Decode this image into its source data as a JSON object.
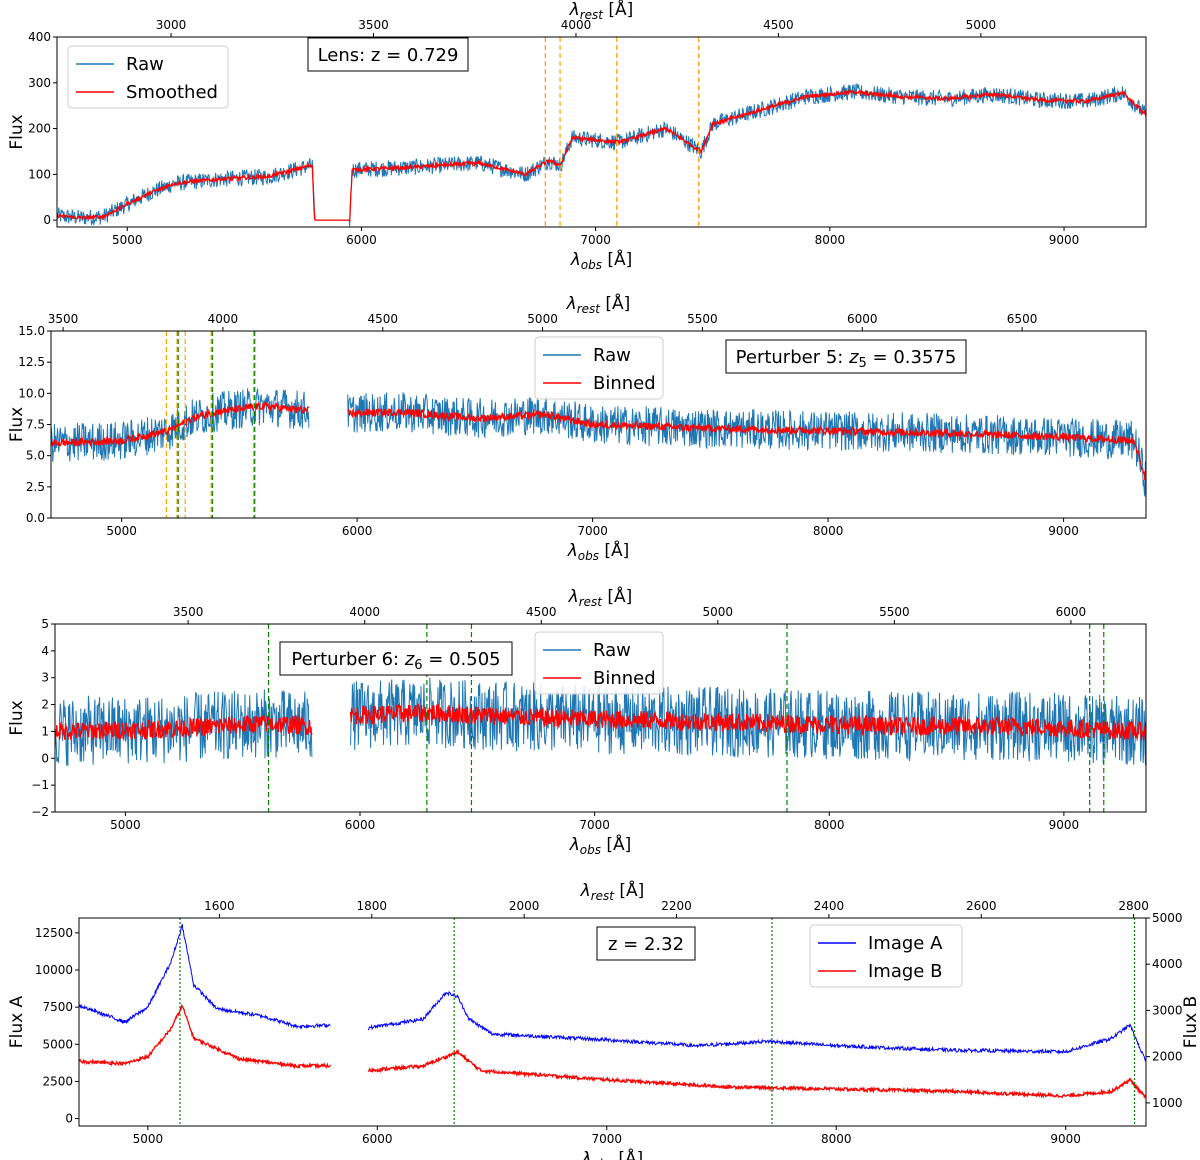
{
  "chart_data": [
    {
      "type": "line",
      "panel": "lens",
      "xlabel_main": "λ",
      "xlabel_sub": "obs",
      "xlabel_unit": " [Å]",
      "top_xlabel_main": "λ",
      "top_xlabel_sub": "rest",
      "top_xlabel_unit": " [Å]",
      "ylabel": "Flux",
      "xlim": [
        4700,
        9350
      ],
      "ylim": [
        -15,
        400
      ],
      "x_ticks": [
        "5000",
        "6000",
        "7000",
        "8000",
        "9000"
      ],
      "x_tick_values": [
        5000,
        6000,
        7000,
        8000,
        9000
      ],
      "top_ticks": [
        "3000",
        "3500",
        "4000",
        "4500",
        "5000"
      ],
      "top_tick_values": [
        3000,
        3500,
        4000,
        4500,
        5000
      ],
      "y_ticks": [
        "0",
        "100",
        "200",
        "300",
        "400"
      ],
      "y_tick_values": [
        0,
        100,
        200,
        300,
        400
      ],
      "redshift": 0.729,
      "annotation": "Lens: z = 0.729",
      "annotation_pos": "top-center-left",
      "legend": [
        "Raw",
        "Smoothed"
      ],
      "legend_position": "upper-left",
      "series": [
        {
          "name": "Raw",
          "color": "#1f77b4",
          "noise": 18,
          "values": [
            [
              4700,
              10
            ],
            [
              4800,
              5
            ],
            [
              4900,
              8
            ],
            [
              5000,
              35
            ],
            [
              5100,
              60
            ],
            [
              5200,
              80
            ],
            [
              5400,
              90
            ],
            [
              5600,
              95
            ],
            [
              5790,
              120
            ],
            [
              5800,
              0
            ],
            [
              5950,
              0
            ],
            [
              5960,
              110
            ],
            [
              6200,
              115
            ],
            [
              6500,
              125
            ],
            [
              6700,
              100
            ],
            [
              6800,
              130
            ],
            [
              6850,
              120
            ],
            [
              6900,
              180
            ],
            [
              7100,
              170
            ],
            [
              7300,
              200
            ],
            [
              7450,
              150
            ],
            [
              7500,
              210
            ],
            [
              7700,
              240
            ],
            [
              7900,
              270
            ],
            [
              8100,
              280
            ],
            [
              8300,
              270
            ],
            [
              8500,
              265
            ],
            [
              8700,
              275
            ],
            [
              8900,
              262
            ],
            [
              9100,
              260
            ],
            [
              9250,
              278
            ],
            [
              9350,
              230
            ]
          ]
        },
        {
          "name": "Smoothed",
          "color": "#ff0000",
          "noise": 4,
          "values": [
            [
              4700,
              10
            ],
            [
              4800,
              5
            ],
            [
              4900,
              8
            ],
            [
              5000,
              35
            ],
            [
              5100,
              60
            ],
            [
              5200,
              80
            ],
            [
              5400,
              90
            ],
            [
              5600,
              95
            ],
            [
              5790,
              120
            ],
            [
              5800,
              0
            ],
            [
              5950,
              0
            ],
            [
              5960,
              110
            ],
            [
              6200,
              115
            ],
            [
              6500,
              125
            ],
            [
              6700,
              100
            ],
            [
              6800,
              130
            ],
            [
              6850,
              120
            ],
            [
              6900,
              180
            ],
            [
              7100,
              170
            ],
            [
              7300,
              200
            ],
            [
              7450,
              150
            ],
            [
              7500,
              210
            ],
            [
              7700,
              240
            ],
            [
              7900,
              270
            ],
            [
              8100,
              280
            ],
            [
              8300,
              270
            ],
            [
              8500,
              265
            ],
            [
              8700,
              275
            ],
            [
              8900,
              262
            ],
            [
              9100,
              260
            ],
            [
              9250,
              278
            ],
            [
              9350,
              230
            ]
          ]
        }
      ],
      "marker_lines": {
        "color": "#ffa500",
        "style": "dashed",
        "x": [
          6785,
          6848,
          7090,
          7440
        ]
      }
    },
    {
      "type": "line",
      "panel": "perturber5",
      "xlabel_main": "λ",
      "xlabel_sub": "obs",
      "xlabel_unit": " [Å]",
      "top_xlabel_main": "λ",
      "top_xlabel_sub": "rest",
      "top_xlabel_unit": " [Å]",
      "ylabel": "Flux",
      "xlim": [
        4700,
        9350
      ],
      "ylim": [
        0,
        15
      ],
      "x_ticks": [
        "5000",
        "6000",
        "7000",
        "8000",
        "9000"
      ],
      "x_tick_values": [
        5000,
        6000,
        7000,
        8000,
        9000
      ],
      "top_ticks": [
        "3500",
        "4000",
        "4500",
        "5000",
        "5500",
        "6000",
        "6500"
      ],
      "top_tick_values": [
        3500,
        4000,
        4500,
        5000,
        5500,
        6000,
        6500
      ],
      "y_ticks": [
        "0.0",
        "2.5",
        "5.0",
        "7.5",
        "10.0",
        "12.5",
        "15.0"
      ],
      "y_tick_values": [
        0,
        2.5,
        5,
        7.5,
        10,
        12.5,
        15
      ],
      "redshift": 0.3575,
      "annotation_prefix": "Perturber 5: ",
      "annotation_var": "z",
      "annotation_var_sub": "5",
      "annotation_suffix": " = 0.3575",
      "annotation_pos": "top-right",
      "legend": [
        "Raw",
        "Binned"
      ],
      "legend_position": "upper-center",
      "series": [
        {
          "name": "Raw",
          "color": "#1f77b4",
          "noise": 1.6,
          "values": [
            [
              4700,
              6
            ],
            [
              5000,
              6.2
            ],
            [
              5200,
              7
            ],
            [
              5300,
              8
            ],
            [
              5400,
              8.5
            ],
            [
              5600,
              9
            ],
            [
              5800,
              8.6
            ],
            [
              5960,
              8.4
            ],
            [
              6200,
              8.5
            ],
            [
              6500,
              8
            ],
            [
              6800,
              8.3
            ],
            [
              7000,
              7.5
            ],
            [
              7500,
              7.2
            ],
            [
              8000,
              7
            ],
            [
              8500,
              6.8
            ],
            [
              9000,
              6.5
            ],
            [
              9300,
              6.2
            ],
            [
              9350,
              3
            ]
          ]
        },
        {
          "name": "Binned",
          "color": "#ff0000",
          "noise": 0.3,
          "values": [
            [
              4700,
              6
            ],
            [
              5000,
              6.2
            ],
            [
              5200,
              7
            ],
            [
              5300,
              8
            ],
            [
              5400,
              8.5
            ],
            [
              5600,
              9
            ],
            [
              5800,
              8.6
            ],
            [
              5960,
              8.4
            ],
            [
              6200,
              8.5
            ],
            [
              6500,
              8
            ],
            [
              6800,
              8.3
            ],
            [
              7000,
              7.5
            ],
            [
              7500,
              7.2
            ],
            [
              8000,
              7
            ],
            [
              8500,
              6.8
            ],
            [
              9000,
              6.5
            ],
            [
              9300,
              6.2
            ],
            [
              9350,
              3
            ]
          ]
        }
      ],
      "marker_lines": {
        "color": "#ffa500",
        "style": "dashed",
        "x": [
          5190,
          5235,
          5270,
          5380,
          5560
        ]
      },
      "marker_lines_2": {
        "color": "#008000",
        "style": "dashed",
        "x": [
          5240,
          5385,
          5565
        ]
      }
    },
    {
      "type": "line",
      "panel": "perturber6",
      "xlabel_main": "λ",
      "xlabel_sub": "obs",
      "xlabel_unit": " [Å]",
      "top_xlabel_main": "λ",
      "top_xlabel_sub": "rest",
      "top_xlabel_unit": " [Å]",
      "ylabel": "Flux",
      "xlim": [
        4700,
        9350
      ],
      "ylim": [
        -2,
        5
      ],
      "x_ticks": [
        "5000",
        "6000",
        "7000",
        "8000",
        "9000"
      ],
      "x_tick_values": [
        5000,
        6000,
        7000,
        8000,
        9000
      ],
      "top_ticks": [
        "3500",
        "4000",
        "4500",
        "5000",
        "5500",
        "6000"
      ],
      "top_tick_values": [
        3500,
        4000,
        4500,
        5000,
        5500,
        6000
      ],
      "y_ticks": [
        "−2",
        "−1",
        "0",
        "1",
        "2",
        "3",
        "4",
        "5"
      ],
      "y_tick_values": [
        -2,
        -1,
        0,
        1,
        2,
        3,
        4,
        5
      ],
      "redshift": 0.505,
      "annotation_prefix": "Perturber 6: ",
      "annotation_var": "z",
      "annotation_var_sub": "6",
      "annotation_suffix": " = 0.505",
      "annotation_pos": "top-left",
      "legend": [
        "Raw",
        "Binned"
      ],
      "legend_position": "upper-center",
      "series": [
        {
          "name": "Raw",
          "color": "#1f77b4",
          "noise": 1.3,
          "values": [
            [
              4700,
              1
            ],
            [
              5200,
              1.1
            ],
            [
              5600,
              1.3
            ],
            [
              5800,
              1.2
            ],
            [
              5960,
              1.6
            ],
            [
              6300,
              1.7
            ],
            [
              6800,
              1.5
            ],
            [
              7300,
              1.4
            ],
            [
              7800,
              1.3
            ],
            [
              8300,
              1.2
            ],
            [
              8800,
              1.2
            ],
            [
              9350,
              1
            ]
          ]
        },
        {
          "name": "Binned",
          "color": "#ff0000",
          "noise": 0.35,
          "values": [
            [
              4700,
              1
            ],
            [
              5200,
              1.1
            ],
            [
              5600,
              1.3
            ],
            [
              5800,
              1.2
            ],
            [
              5960,
              1.6
            ],
            [
              6300,
              1.7
            ],
            [
              6800,
              1.5
            ],
            [
              7300,
              1.4
            ],
            [
              7800,
              1.3
            ],
            [
              8300,
              1.2
            ],
            [
              8800,
              1.2
            ],
            [
              9350,
              1
            ]
          ]
        }
      ],
      "marker_lines": {
        "color": "#008000",
        "style": "dashed",
        "x": [
          5610,
          6285,
          6475,
          7820,
          9110,
          9170
        ]
      }
    },
    {
      "type": "line",
      "panel": "quasar",
      "xlabel_main": "λ",
      "xlabel_sub": "obs",
      "xlabel_unit": " [Å]",
      "top_xlabel_main": "λ",
      "top_xlabel_sub": "rest",
      "top_xlabel_unit": " [Å]",
      "ylabel": "Flux A",
      "ylabel_right": "Flux B",
      "xlim": [
        4700,
        9350
      ],
      "ylim": [
        -500,
        13500
      ],
      "ylim_right": [
        500,
        5000
      ],
      "x_ticks": [
        "5000",
        "6000",
        "7000",
        "8000",
        "9000"
      ],
      "x_tick_values": [
        5000,
        6000,
        7000,
        8000,
        9000
      ],
      "top_ticks": [
        "1600",
        "1800",
        "2000",
        "2200",
        "2400",
        "2600",
        "2800"
      ],
      "top_tick_values": [
        1600,
        1800,
        2000,
        2200,
        2400,
        2600,
        2800
      ],
      "y_ticks": [
        "0",
        "2500",
        "5000",
        "7500",
        "10000",
        "12500"
      ],
      "y_tick_values": [
        0,
        2500,
        5000,
        7500,
        10000,
        12500
      ],
      "y_ticks_right": [
        "1000",
        "2000",
        "3000",
        "4000",
        "5000"
      ],
      "y_tick_values_right": [
        1000,
        2000,
        3000,
        4000,
        5000
      ],
      "redshift": 2.32,
      "annotation": "z = 2.32",
      "annotation_pos": "top-center",
      "legend": [
        "Image A",
        "Image B"
      ],
      "legend_position": "upper-right",
      "series": [
        {
          "name": "Image A",
          "axis": "left",
          "color": "#0000ff",
          "noise": 120,
          "values": [
            [
              4700,
              7600
            ],
            [
              4900,
              6500
            ],
            [
              5000,
              7500
            ],
            [
              5100,
              10500
            ],
            [
              5150,
              13000
            ],
            [
              5200,
              9000
            ],
            [
              5300,
              7400
            ],
            [
              5500,
              6900
            ],
            [
              5650,
              6200
            ],
            [
              5800,
              6300
            ],
            [
              5960,
              6100
            ],
            [
              6200,
              6700
            ],
            [
              6300,
              8500
            ],
            [
              6350,
              8200
            ],
            [
              6400,
              6700
            ],
            [
              6500,
              5700
            ],
            [
              7000,
              5300
            ],
            [
              7400,
              4900
            ],
            [
              7700,
              5200
            ],
            [
              8000,
              4900
            ],
            [
              8500,
              4600
            ],
            [
              9000,
              4500
            ],
            [
              9200,
              5400
            ],
            [
              9280,
              6300
            ],
            [
              9350,
              3800
            ]
          ]
        },
        {
          "name": "Image B",
          "axis": "right",
          "color": "#ff0000",
          "noise": 35,
          "values": [
            [
              4700,
              1900
            ],
            [
              4900,
              1850
            ],
            [
              5000,
              2000
            ],
            [
              5100,
              2600
            ],
            [
              5150,
              3100
            ],
            [
              5200,
              2400
            ],
            [
              5400,
              1950
            ],
            [
              5650,
              1800
            ],
            [
              5800,
              1800
            ],
            [
              5960,
              1700
            ],
            [
              6200,
              1800
            ],
            [
              6350,
              2100
            ],
            [
              6450,
              1700
            ],
            [
              7000,
              1500
            ],
            [
              7500,
              1350
            ],
            [
              8000,
              1300
            ],
            [
              8500,
              1250
            ],
            [
              9000,
              1150
            ],
            [
              9200,
              1250
            ],
            [
              9280,
              1500
            ],
            [
              9350,
              1100
            ]
          ]
        }
      ],
      "marker_lines": {
        "color": "#008000",
        "style": "dotted",
        "x": [
          5140,
          6335,
          7720,
          9300
        ]
      }
    }
  ]
}
